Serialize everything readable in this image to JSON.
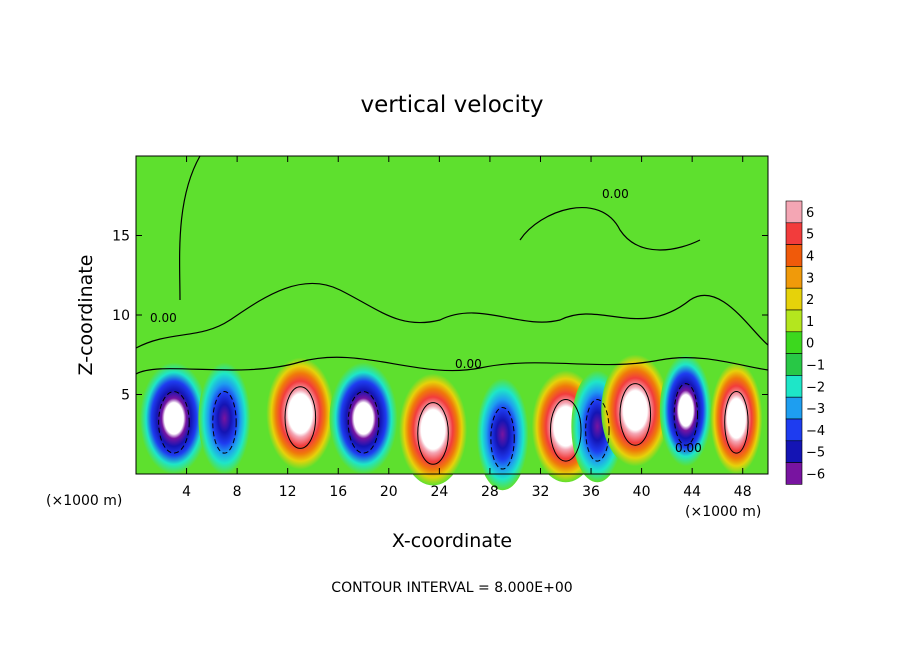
{
  "chart_data": {
    "type": "heatmap",
    "title": "vertical velocity",
    "xlabel": "X-coordinate",
    "ylabel": "Z-coordinate",
    "x_unit": "(×1000 m)",
    "y_unit": "(×1000 m)",
    "xlim": [
      0,
      50
    ],
    "ylim": [
      0,
      20
    ],
    "x_ticks": [
      4,
      8,
      12,
      16,
      20,
      24,
      28,
      32,
      36,
      40,
      44,
      48
    ],
    "y_ticks": [
      5,
      10,
      15
    ],
    "colorbar": {
      "ticks": [
        6,
        5,
        4,
        3,
        2,
        1,
        0,
        -1,
        -2,
        -3,
        -4,
        -5,
        -6
      ],
      "colors": [
        "#f4a6b4",
        "#f23c3c",
        "#f05a0a",
        "#f09a0a",
        "#e6d20a",
        "#b4e61e",
        "#3cd81e",
        "#28c846",
        "#1ee6c8",
        "#1e9ef0",
        "#1e3cf0",
        "#1414b4",
        "#7814a0"
      ]
    },
    "contour_label": "0.00",
    "cells": [
      {
        "x": 3,
        "z": 3.5,
        "w": -6
      },
      {
        "x": 7,
        "z": 3.5,
        "w": -4.5
      },
      {
        "x": 13,
        "z": 3.8,
        "w": 6
      },
      {
        "x": 18,
        "z": 3.5,
        "w": -5.5
      },
      {
        "x": 23.5,
        "z": 2.8,
        "w": 6
      },
      {
        "x": 29,
        "z": 2.5,
        "w": -4.5
      },
      {
        "x": 34,
        "z": 3,
        "w": 6
      },
      {
        "x": 36.5,
        "z": 3,
        "w": -4
      },
      {
        "x": 39.5,
        "z": 4,
        "w": 6
      },
      {
        "x": 43.5,
        "z": 4,
        "w": -5
      },
      {
        "x": 47.5,
        "z": 3.5,
        "w": 5
      }
    ],
    "footer": "CONTOUR INTERVAL = 8.000E+00"
  }
}
